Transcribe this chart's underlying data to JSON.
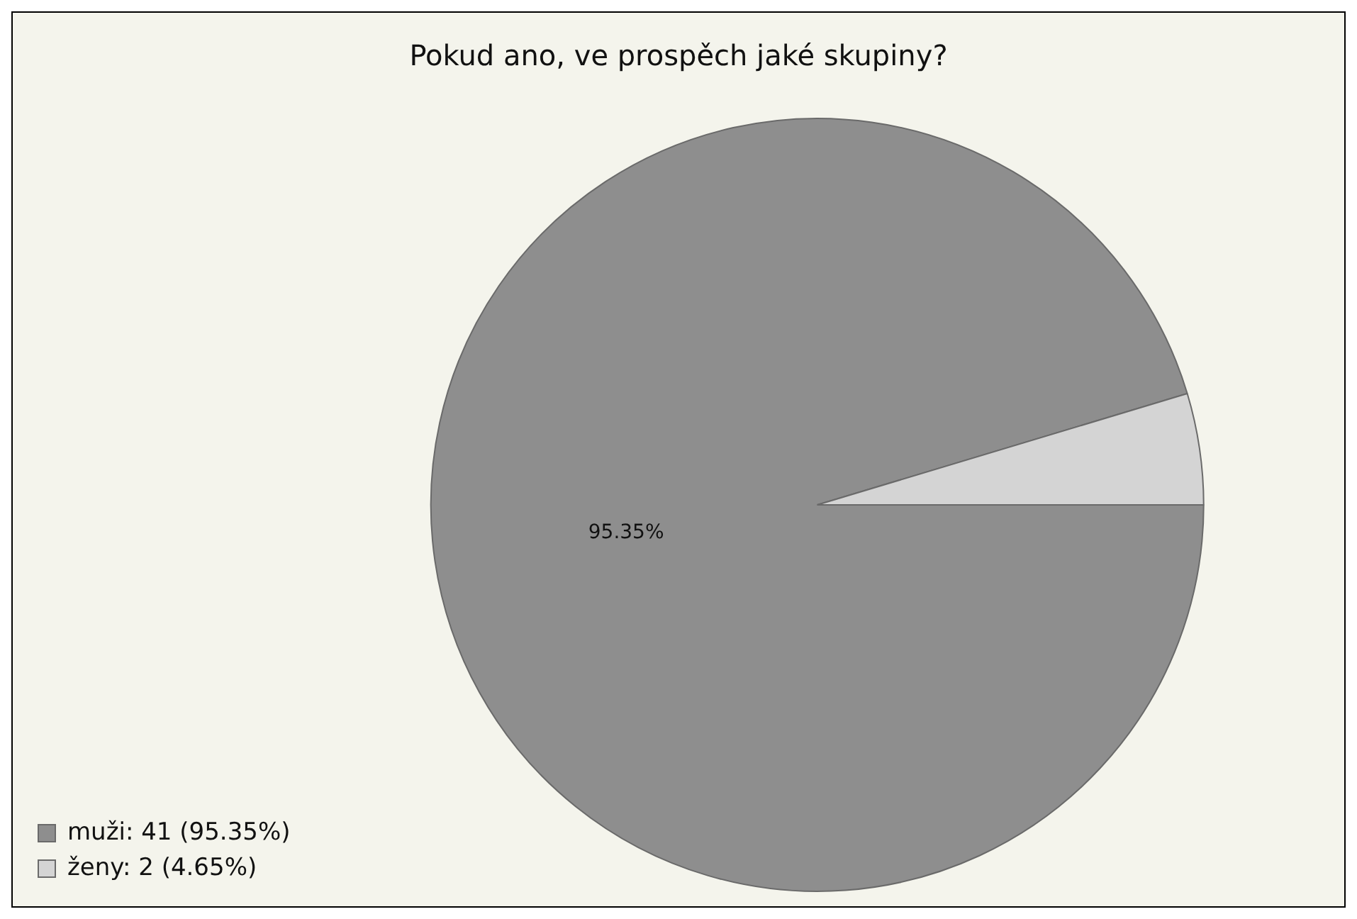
{
  "chart_data": {
    "type": "pie",
    "title": "Pokud ano, ve prospěch jaké skupiny?",
    "categories": [
      "muži: 41 (95.35%)",
      "ženy: 2 (4.65%)"
    ],
    "values": [
      95.35,
      4.65
    ],
    "colors": [
      "#8e8e8e",
      "#d4d4d4"
    ],
    "value_labels": [
      "95.35%",
      null
    ],
    "legend": "bottom left"
  }
}
